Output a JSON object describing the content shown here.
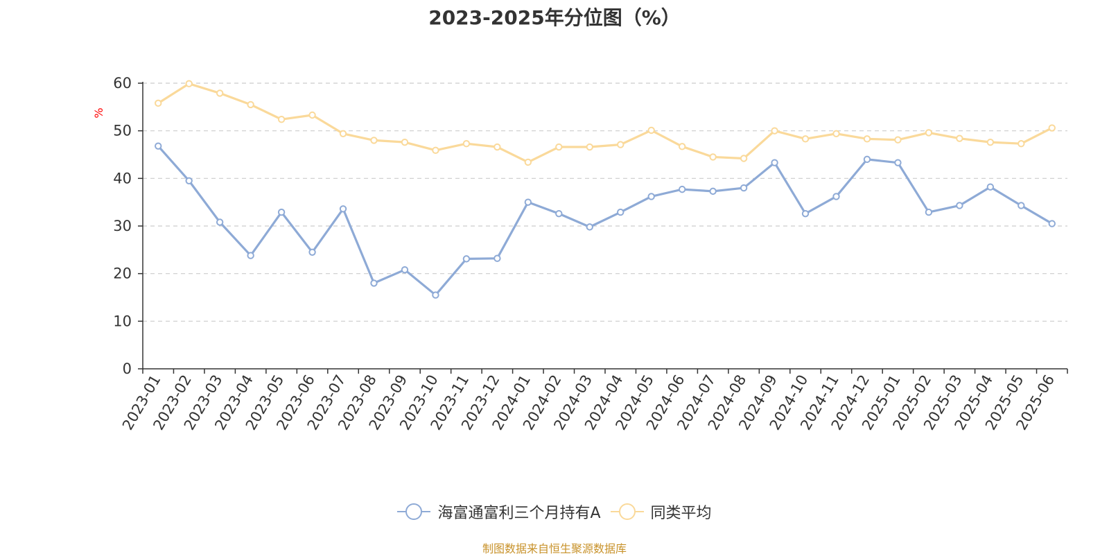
{
  "title": "2023-2025年分位图（%）",
  "source": "制图数据来自恒生聚源数据库",
  "chart_data": {
    "type": "line",
    "title": "2023-2025年分位图（%）",
    "ylabel": "%",
    "xlabel": "",
    "ylim": [
      0,
      60
    ],
    "yticks": [
      0,
      10,
      20,
      30,
      40,
      50,
      60
    ],
    "grid": true,
    "legend_position": "bottom",
    "categories": [
      "2023-01",
      "2023-02",
      "2023-03",
      "2023-04",
      "2023-05",
      "2023-06",
      "2023-07",
      "2023-08",
      "2023-09",
      "2023-10",
      "2023-11",
      "2023-12",
      "2024-01",
      "2024-02",
      "2024-03",
      "2024-04",
      "2024-05",
      "2024-06",
      "2024-07",
      "2024-08",
      "2024-09",
      "2024-10",
      "2024-11",
      "2024-12",
      "2025-01",
      "2025-02",
      "2025-03",
      "2025-04",
      "2025-05",
      "2025-06"
    ],
    "series": [
      {
        "name": "海富通富利三个月持有A",
        "color": "#8eaad6",
        "values": [
          46.8,
          39.5,
          30.8,
          23.8,
          32.9,
          24.5,
          33.6,
          18.0,
          20.8,
          15.5,
          23.1,
          23.2,
          35.0,
          32.6,
          29.8,
          32.9,
          36.2,
          37.7,
          37.3,
          38.0,
          43.3,
          32.6,
          36.2,
          44.0,
          43.3,
          32.9,
          34.3,
          38.2,
          34.3,
          30.5
        ]
      },
      {
        "name": "同类平均",
        "color": "#fad99a",
        "values": [
          55.8,
          59.9,
          57.9,
          55.5,
          52.4,
          53.3,
          49.4,
          48.0,
          47.6,
          45.9,
          47.3,
          46.6,
          43.4,
          46.6,
          46.6,
          47.1,
          50.1,
          46.7,
          44.5,
          44.2,
          50.0,
          48.3,
          49.4,
          48.3,
          48.1,
          49.6,
          48.4,
          47.6,
          47.3,
          50.6
        ]
      }
    ]
  }
}
